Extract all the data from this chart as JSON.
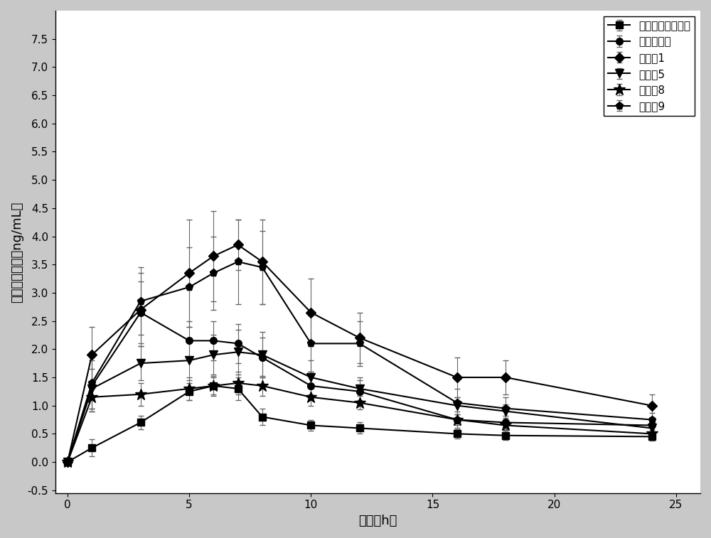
{
  "title": "",
  "xlabel": "时间（h）",
  "ylabel": "稳态血药浓度（ng/mL）",
  "xlim": [
    -0.5,
    26
  ],
  "ylim": [
    -0.55,
    8.0
  ],
  "xticks": [
    0,
    5,
    10,
    15,
    20,
    25
  ],
  "yticks": [
    -0.5,
    0.0,
    0.5,
    1.0,
    1.5,
    2.0,
    2.5,
    3.0,
    3.5,
    4.0,
    4.5,
    5.0,
    5.5,
    6.0,
    6.5,
    7.0,
    7.5
  ],
  "series": [
    {
      "label": "曲司氯锄缓释胶囊",
      "marker": "s",
      "x": [
        0,
        1,
        3,
        5,
        6,
        7,
        8,
        10,
        12,
        16,
        18,
        24
      ],
      "y": [
        0.0,
        0.25,
        0.7,
        1.25,
        1.35,
        1.3,
        0.8,
        0.65,
        0.6,
        0.5,
        0.47,
        0.45
      ],
      "yerr": [
        0.0,
        0.15,
        0.12,
        0.15,
        0.15,
        0.2,
        0.15,
        0.1,
        0.1,
        0.08,
        0.08,
        0.07
      ]
    },
    {
      "label": "曲司氯锄片",
      "marker": "o",
      "x": [
        0,
        1,
        3,
        5,
        6,
        7,
        8,
        10,
        12,
        16,
        18,
        24
      ],
      "y": [
        0.0,
        1.35,
        2.65,
        2.15,
        2.15,
        2.1,
        1.85,
        1.35,
        1.25,
        0.75,
        0.7,
        0.65
      ],
      "yerr": [
        0.0,
        0.45,
        0.55,
        0.35,
        0.35,
        0.35,
        0.35,
        0.25,
        0.2,
        0.15,
        0.12,
        0.12
      ]
    },
    {
      "label": "实施例1",
      "marker": "D",
      "x": [
        0,
        1,
        3,
        5,
        6,
        7,
        8,
        10,
        12,
        16,
        18,
        24
      ],
      "y": [
        0.0,
        1.9,
        2.7,
        3.35,
        3.65,
        3.85,
        3.55,
        2.65,
        2.2,
        1.5,
        1.5,
        1.0
      ],
      "yerr": [
        0.0,
        0.5,
        0.65,
        0.95,
        0.8,
        0.45,
        0.75,
        0.6,
        0.45,
        0.35,
        0.3,
        0.2
      ]
    },
    {
      "label": "实施例5",
      "marker": "v",
      "x": [
        0,
        1,
        3,
        5,
        6,
        7,
        8,
        10,
        12,
        16,
        18,
        24
      ],
      "y": [
        0.0,
        1.3,
        1.75,
        1.8,
        1.9,
        1.95,
        1.9,
        1.5,
        1.3,
        1.0,
        0.9,
        0.6
      ],
      "yerr": [
        0.0,
        0.35,
        0.3,
        0.35,
        0.35,
        0.4,
        0.4,
        0.3,
        0.2,
        0.15,
        0.12,
        0.1
      ]
    },
    {
      "label": "实施例8",
      "marker": "*",
      "x": [
        0,
        1,
        3,
        5,
        6,
        7,
        8,
        10,
        12,
        16,
        18,
        24
      ],
      "y": [
        0.0,
        1.15,
        1.2,
        1.3,
        1.35,
        1.4,
        1.35,
        1.15,
        1.05,
        0.75,
        0.65,
        0.5
      ],
      "yerr": [
        0.0,
        0.25,
        0.2,
        0.2,
        0.18,
        0.2,
        0.18,
        0.15,
        0.12,
        0.1,
        0.08,
        0.07
      ]
    },
    {
      "label": "实施例9",
      "marker": "p",
      "x": [
        0,
        1,
        3,
        5,
        6,
        7,
        8,
        10,
        12,
        16,
        18,
        24
      ],
      "y": [
        0.0,
        1.4,
        2.85,
        3.1,
        3.35,
        3.55,
        3.45,
        2.1,
        2.1,
        1.05,
        0.95,
        0.75
      ],
      "yerr": [
        0.0,
        0.45,
        0.6,
        0.7,
        0.65,
        0.75,
        0.65,
        0.5,
        0.4,
        0.25,
        0.2,
        0.12
      ]
    }
  ],
  "background_color": "#c8c8c8",
  "plot_bg_color": "#ffffff",
  "legend_fontsize": 11,
  "axis_fontsize": 13,
  "tick_fontsize": 11,
  "linewidth": 1.5,
  "markersize": 7
}
